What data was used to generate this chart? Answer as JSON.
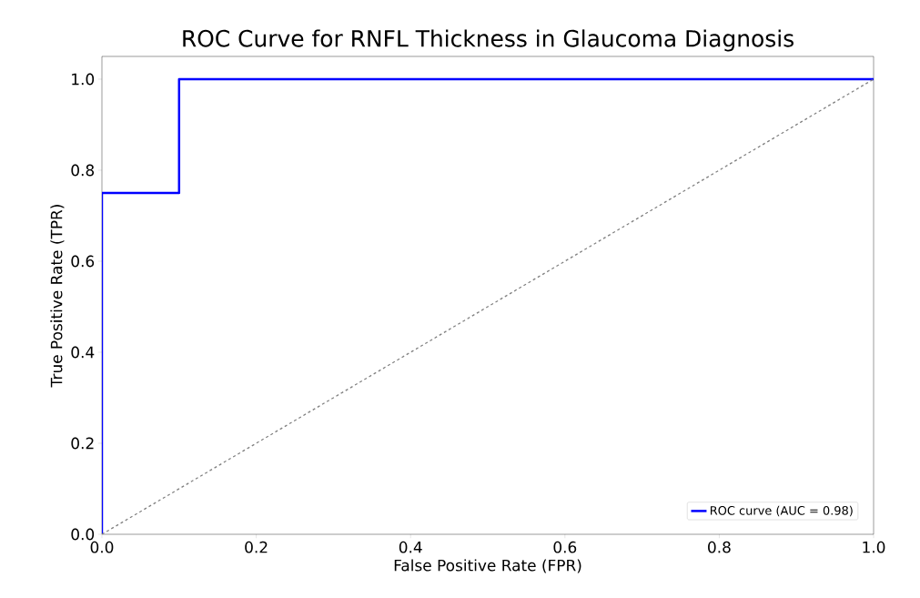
{
  "chart_data": {
    "type": "line",
    "title": "ROC Curve for RNFL Thickness in Glaucoma Diagnosis",
    "xlabel": "False Positive Rate (FPR)",
    "ylabel": "True Positive Rate (TPR)",
    "series": [
      {
        "name": "ROC curve (AUC = 0.98)",
        "color": "#0000ff",
        "x": [
          0,
          0,
          0.1,
          0.1,
          1
        ],
        "values": [
          0,
          0.75,
          0.75,
          1,
          1
        ]
      },
      {
        "color": "#808080",
        "line_style": "dashed",
        "x": [
          0,
          1
        ],
        "values": [
          0,
          1
        ]
      }
    ],
    "xlim": [
      0,
      1
    ],
    "ylim": [
      0,
      1.05
    ],
    "xticks": [
      {
        "value": 0,
        "label": "0.0"
      },
      0.2,
      0.4,
      0.6,
      0.8,
      {
        "value": 1,
        "label": "1.0"
      }
    ],
    "yticks": [
      {
        "value": 0,
        "label": "0.0"
      },
      0.2,
      0.4,
      0.6,
      0.8,
      {
        "value": 1,
        "label": "1.0"
      }
    ],
    "legend": "bottom right",
    "grid": false,
    "marker": "none"
  }
}
